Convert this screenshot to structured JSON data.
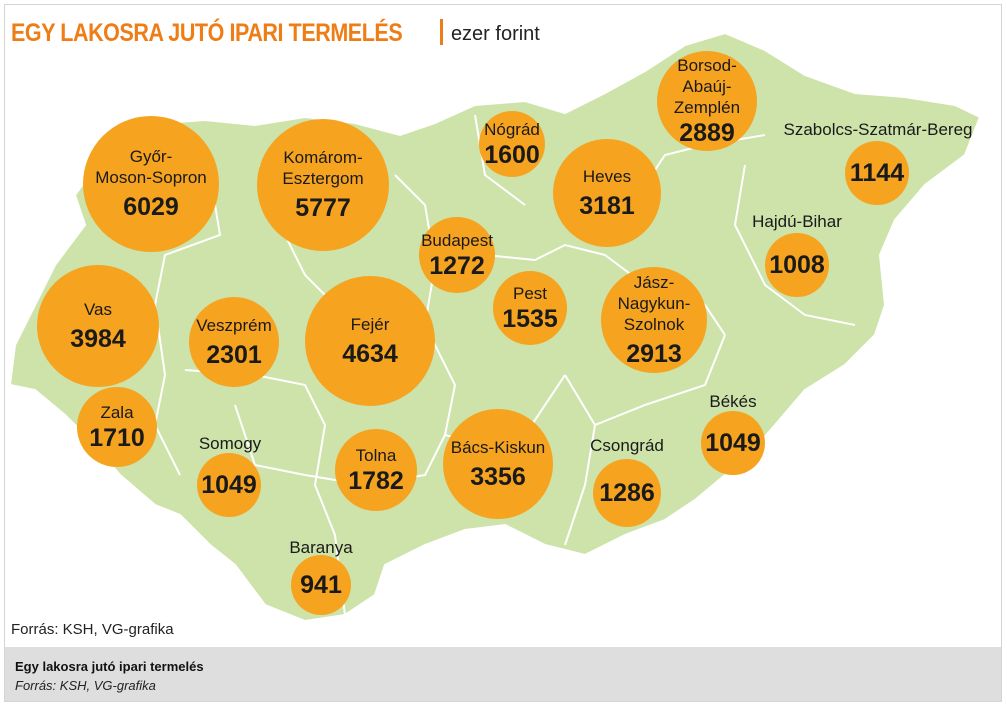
{
  "title": {
    "main": "EGY LAKOSRA JUTÓ IPARI TERMELÉS",
    "unit": "ezer forint"
  },
  "map_source": "Forrás: KSH, VG-grafika",
  "caption": {
    "title": "Egy lakosra jutó ipari termelés",
    "source": "Forrás: KSH, VG-grafika"
  },
  "colors": {
    "bubble": "#f6a320",
    "land": "#cde3a9",
    "border": "#ffffff",
    "title": "#ee7d16"
  },
  "counties": [
    {
      "id": "gyor",
      "name": "Győr-\nMoson-Sopron",
      "value": "6029"
    },
    {
      "id": "komarom",
      "name": "Komárom-\nEsztergom",
      "value": "5777"
    },
    {
      "id": "nograd",
      "name": "Nógrád",
      "value": "1600"
    },
    {
      "id": "borsod",
      "name": "Borsod-\nAbaúj-Zemplén",
      "value": "2889"
    },
    {
      "id": "szabolcs",
      "name": "Szabolcs-Szatmár-Bereg",
      "value": "1144"
    },
    {
      "id": "heves",
      "name": "Heves",
      "value": "3181"
    },
    {
      "id": "budapest",
      "name": "Budapest",
      "value": "1272"
    },
    {
      "id": "hajdu",
      "name": "Hajdú-Bihar",
      "value": "1008"
    },
    {
      "id": "vas",
      "name": "Vas",
      "value": "3984"
    },
    {
      "id": "veszprem",
      "name": "Veszprém",
      "value": "2301"
    },
    {
      "id": "fejer",
      "name": "Fejér",
      "value": "4634"
    },
    {
      "id": "pest",
      "name": "Pest",
      "value": "1535"
    },
    {
      "id": "jasz",
      "name": "Jász-Nagykun-\nSzolnok",
      "value": "2913"
    },
    {
      "id": "zala",
      "name": "Zala",
      "value": "1710"
    },
    {
      "id": "somogy",
      "name": "Somogy",
      "value": "1049"
    },
    {
      "id": "tolna",
      "name": "Tolna",
      "value": "1782"
    },
    {
      "id": "bacs",
      "name": "Bács-Kiskun",
      "value": "3356"
    },
    {
      "id": "csongrad",
      "name": "Csongrád",
      "value": "1286"
    },
    {
      "id": "bekes",
      "name": "Békés",
      "value": "1049"
    },
    {
      "id": "baranya",
      "name": "Baranya",
      "value": "941"
    }
  ]
}
